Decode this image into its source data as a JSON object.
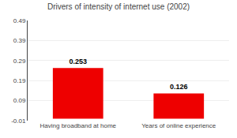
{
  "chart_data": {
    "type": "bar",
    "title": "Drivers of intensity of internet use (2002)",
    "categories": [
      "Having broadband at home",
      "Years of online experience"
    ],
    "values": [
      0.253,
      0.126
    ],
    "color": "#ee0000",
    "ylim": [
      -0.01,
      0.49
    ],
    "yticks": [
      -0.01,
      0.09,
      0.19,
      0.29,
      0.39,
      0.49
    ],
    "grid": true,
    "data_labels": true
  }
}
